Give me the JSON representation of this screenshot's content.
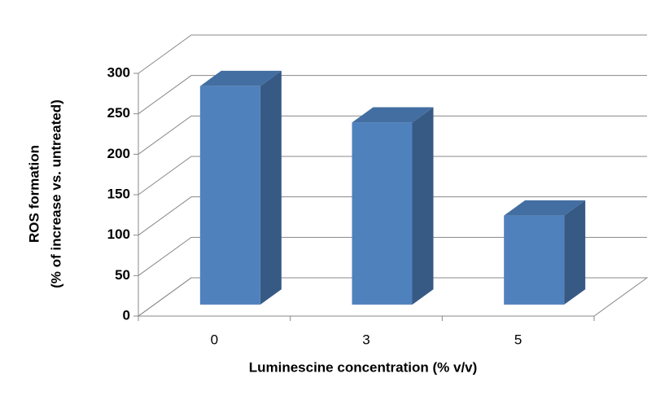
{
  "chart_data": {
    "type": "bar3d",
    "y_label": [
      "ROS formation",
      "(% of increase vs. untreated)"
    ],
    "x_label": "Luminescine concentration (% v/v)",
    "categories": [
      "0",
      "3",
      "5"
    ],
    "values": [
      270,
      225,
      110
    ],
    "color": "#4f81bd",
    "ylim": [
      0,
      300
    ],
    "yticks": [
      0,
      50,
      100,
      150,
      200,
      250,
      300
    ],
    "grid": true
  }
}
